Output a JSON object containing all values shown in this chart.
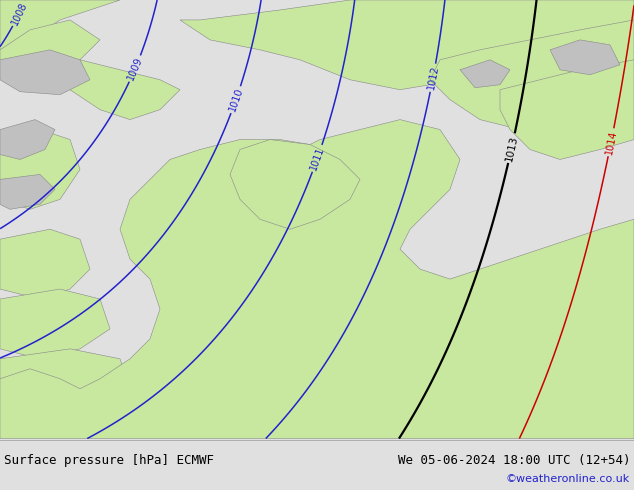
{
  "title_left": "Surface pressure [hPa] ECMWF",
  "title_right": "We 05-06-2024 18:00 UTC (12+54)",
  "copyright": "©weatheronline.co.uk",
  "sea_color": "#d4dce8",
  "land_color_light": "#c8e8a0",
  "land_color_gray": "#c0c0c0",
  "coast_color": "#888888",
  "blue_color": "#2222cc",
  "red_color": "#cc0000",
  "black_color": "#000000",
  "bottom_bg": "#e0e0e0",
  "figsize": [
    6.34,
    4.9
  ],
  "dpi": 100,
  "font_size_bottom": 9,
  "font_size_copy": 8
}
